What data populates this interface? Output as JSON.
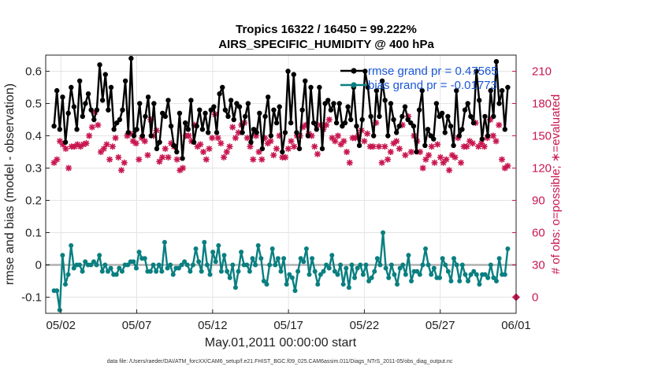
{
  "chart_data": {
    "type": "line",
    "title_line1": "Tropics 16322 / 16450 = 99.222%",
    "title_line2": "AIRS_SPECIFIC_HUMIDITY @ 400 hPa",
    "xlabel": "May.01,2011 00:00:00 start",
    "ylabel_left": "rmse and bias (model - observation)",
    "ylabel_right": "# of obs: o=possible; ∗=evaluated",
    "xlim": [
      0.5,
      31.5
    ],
    "ylim_left": [
      -0.15,
      0.65
    ],
    "ylim_right": [
      -15,
      225
    ],
    "x_ticks": [
      {
        "x": 1.5,
        "label": "05/02"
      },
      {
        "x": 6.5,
        "label": "05/07"
      },
      {
        "x": 11.5,
        "label": "05/12"
      },
      {
        "x": 16.5,
        "label": "05/17"
      },
      {
        "x": 21.5,
        "label": "05/22"
      },
      {
        "x": 26.5,
        "label": "05/27"
      },
      {
        "x": 31.5,
        "label": "06/01"
      }
    ],
    "y_ticks_left": [
      "0.6",
      "0.5",
      "0.4",
      "0.3",
      "0.2",
      "0.1",
      "0",
      "-0.1"
    ],
    "y_ticks_right": [
      "210",
      "180",
      "150",
      "120",
      "90",
      "60",
      "30",
      "0"
    ],
    "legend": [
      {
        "label": "rmse grand pr = 0.47565",
        "color": "#000000"
      },
      {
        "label": "bias grand pr = -0.01773",
        "color": "#0a7f80"
      }
    ],
    "colors": {
      "rmse": "#000000",
      "bias": "#0a7f80",
      "obs": "#c8174f",
      "zero_line": "#b0b0b0",
      "grid": "#e4e4e4"
    },
    "series": [
      {
        "name": "rmse",
        "values": [
          0.43,
          0.54,
          0.42,
          0.52,
          0.38,
          0.47,
          0.55,
          0.49,
          0.42,
          0.57,
          0.46,
          0.5,
          0.53,
          0.48,
          0.45,
          0.48,
          0.62,
          0.51,
          0.59,
          0.48,
          0.55,
          0.42,
          0.44,
          0.45,
          0.48,
          0.57,
          0.41,
          0.64,
          0.4,
          0.42,
          0.5,
          0.4,
          0.46,
          0.52,
          0.4,
          0.5,
          0.36,
          0.38,
          0.47,
          0.46,
          0.51,
          0.43,
          0.37,
          0.35,
          0.47,
          0.33,
          0.44,
          0.42,
          0.51,
          0.38,
          0.43,
          0.48,
          0.42,
          0.47,
          0.41,
          0.48,
          0.49,
          0.41,
          0.53,
          0.55,
          0.48,
          0.46,
          0.51,
          0.45,
          0.5,
          0.49,
          0.41,
          0.46,
          0.5,
          0.38,
          0.42,
          0.41,
          0.47,
          0.36,
          0.46,
          0.52,
          0.4,
          0.48,
          0.44,
          0.49,
          0.35,
          0.41,
          0.6,
          0.44,
          0.59,
          0.41,
          0.36,
          0.48,
          0.57,
          0.4,
          0.55,
          0.44,
          0.42,
          0.55,
          0.36,
          0.5,
          0.51,
          0.48,
          0.5,
          0.44,
          0.5,
          0.43,
          0.44,
          0.49,
          0.45,
          0.55,
          0.43,
          0.37,
          0.45,
          0.6,
          0.55,
          0.46,
          0.4,
          0.54,
          0.46,
          0.57,
          0.51,
          0.4,
          0.5,
          0.45,
          0.41,
          0.43,
          0.46,
          0.49,
          0.45,
          0.44,
          0.43,
          0.35,
          0.48,
          0.54,
          0.37,
          0.42,
          0.4,
          0.39,
          0.5,
          0.46,
          0.47,
          0.41,
          0.46,
          0.43,
          0.37,
          0.54,
          0.4,
          0.42,
          0.48,
          0.5,
          0.46,
          0.44,
          0.6,
          0.51,
          0.39,
          0.46,
          0.4,
          0.54,
          0.46,
          0.63,
          0.5,
          0.54,
          0.42,
          0.55
        ]
      },
      {
        "name": "bias",
        "values": [
          -0.08,
          -0.08,
          -0.14,
          0.03,
          -0.06,
          -0.03,
          0.06,
          -0.01,
          0.0,
          0.0,
          -0.02,
          0.01,
          0.0,
          0.0,
          0.01,
          0.0,
          0.03,
          -0.02,
          0.0,
          -0.02,
          -0.01,
          -0.03,
          -0.03,
          -0.01,
          -0.02,
          0.0,
          0.0,
          0.01,
          0.01,
          -0.01,
          0.04,
          0.02,
          0.02,
          -0.02,
          -0.02,
          0.0,
          -0.02,
          0.0,
          -0.02,
          0.07,
          -0.01,
          0.0,
          -0.03,
          -0.01,
          -0.01,
          0.0,
          0.01,
          0.0,
          -0.02,
          0.0,
          0.05,
          0.01,
          -0.02,
          0.07,
          0.0,
          -0.03,
          0.04,
          0.01,
          0.06,
          -0.02,
          0.03,
          -0.02,
          -0.04,
          0.0,
          -0.07,
          -0.02,
          0.04,
          0.0,
          0.0,
          -0.02,
          0.02,
          0.0,
          0.06,
          0.02,
          -0.05,
          -0.06,
          0.0,
          0.05,
          0.0,
          0.02,
          -0.02,
          0.02,
          -0.06,
          -0.03,
          -0.04,
          -0.08,
          -0.02,
          0.02,
          0.01,
          0.05,
          -0.03,
          0.02,
          -0.02,
          -0.06,
          -0.03,
          -0.02,
          0.0,
          -0.01,
          0.03,
          -0.02,
          -0.03,
          0.0,
          -0.06,
          -0.01,
          -0.07,
          0.0,
          -0.04,
          -0.01,
          0.0,
          -0.03,
          0.0,
          -0.05,
          -0.04,
          -0.02,
          0.02,
          0.0,
          0.1,
          -0.01,
          -0.04,
          0.0,
          -0.03,
          -0.06,
          -0.01,
          0.0,
          -0.03,
          0.03,
          -0.05,
          -0.02,
          -0.02,
          -0.03,
          0.0,
          0.05,
          0.0,
          -0.03,
          -0.01,
          -0.04,
          -0.04,
          0.02,
          0.0,
          -0.02,
          -0.05,
          0.02,
          0.0,
          -0.05,
          0.0,
          -0.03,
          -0.05,
          -0.03,
          -0.02,
          -0.03,
          -0.06,
          -0.03,
          -0.03,
          -0.04,
          0.0,
          -0.04,
          -0.05,
          0.02,
          -0.03,
          -0.03,
          0.05
        ]
      },
      {
        "name": "obs_evaluated",
        "values": [
          125,
          128,
          145,
          142,
          138,
          120,
          140,
          140,
          142,
          140,
          142,
          143,
          150,
          158,
          172,
          160,
          135,
          138,
          142,
          128,
          140,
          148,
          130,
          118,
          125,
          150,
          152,
          145,
          143,
          128,
          148,
          145,
          132,
          165,
          150,
          155,
          126,
          130,
          138,
          130,
          143,
          140,
          128,
          118,
          120,
          150,
          150,
          145,
          160,
          140,
          142,
          135,
          128,
          138,
          148,
          170,
          148,
          143,
          130,
          135,
          140,
          158,
          148,
          153,
          160,
          162,
          148,
          140,
          128,
          150,
          135,
          128,
          148,
          143,
          145,
          132,
          138,
          150,
          130,
          130,
          138,
          145,
          140,
          150,
          150,
          158,
          160,
          152,
          150,
          140,
          133,
          160,
          156,
          160,
          165,
          148,
          145,
          150,
          142,
          145,
          135,
          125,
          148,
          148,
          150,
          155,
          145,
          152,
          140,
          140,
          162,
          140,
          125,
          140,
          128,
          135,
          143,
          145,
          138,
          160,
          132,
          168,
          135,
          150,
          145,
          135,
          120,
          128,
          132,
          140,
          125,
          142,
          130,
          125,
          128,
          118,
          132,
          130,
          148,
          125,
          140,
          140,
          145,
          143,
          162,
          140,
          143,
          140,
          148,
          165,
          150,
          145,
          160,
          128,
          120,
          122
        ]
      }
    ],
    "bias_zero_line": 0.0,
    "obs_marker_at_zero": {
      "x": 31.5,
      "value": 0
    }
  },
  "footer": {
    "text": "data file: /Users/raeder/DAI/ATM_forcXX/CAM6_setup/f.e21.FHIST_BGC.f09_025.CAM6assim.011/Diags_NTrS_2011-05/obs_diag_output.nc"
  }
}
